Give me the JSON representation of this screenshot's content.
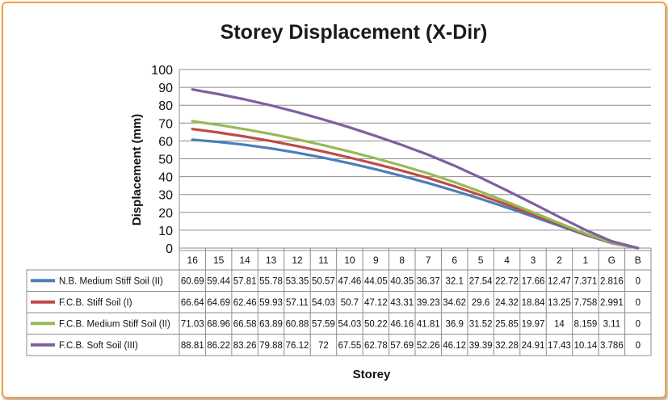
{
  "chart_data": {
    "type": "line",
    "title": "Storey Displacement (X-Dir)",
    "xlabel": "Storey",
    "ylabel": "Displacement (mm)",
    "ylim": [
      0,
      100
    ],
    "yticks": [
      0,
      10,
      20,
      30,
      40,
      50,
      60,
      70,
      80,
      90,
      100
    ],
    "grid": true,
    "legend": "data-table-left",
    "categories": [
      "16",
      "15",
      "14",
      "13",
      "12",
      "11",
      "10",
      "9",
      "8",
      "7",
      "6",
      "5",
      "4",
      "3",
      "2",
      "1",
      "G",
      "B"
    ],
    "series": [
      {
        "name": "N.B. Medium Stiff Soil (II)",
        "color": "#4a7ebb",
        "values": [
          60.69,
          59.44,
          57.81,
          55.78,
          53.35,
          50.57,
          47.46,
          44.05,
          40.35,
          36.37,
          32.1,
          27.54,
          22.72,
          17.66,
          12.47,
          7.371,
          2.816,
          0
        ]
      },
      {
        "name": "F.C.B. Stiff Soil (I)",
        "color": "#be4b48",
        "values": [
          66.64,
          64.69,
          62.46,
          59.93,
          57.11,
          54.03,
          50.7,
          47.12,
          43.31,
          39.23,
          34.62,
          29.6,
          24.32,
          18.84,
          13.25,
          7.758,
          2.991,
          0
        ]
      },
      {
        "name": "F.C.B. Medium Stiff Soil (II)",
        "color": "#98b954",
        "values": [
          71.03,
          68.96,
          66.58,
          63.89,
          60.88,
          57.59,
          54.03,
          50.22,
          46.16,
          41.81,
          36.9,
          31.52,
          25.85,
          19.97,
          14,
          8.159,
          3.11,
          0
        ]
      },
      {
        "name": "F.C.B. Soft Soil (III)",
        "color": "#7d60a0",
        "values": [
          88.81,
          86.22,
          83.26,
          79.88,
          76.12,
          72,
          67.55,
          62.78,
          57.69,
          52.26,
          46.12,
          39.39,
          32.28,
          24.91,
          17.43,
          10.14,
          3.786,
          0
        ]
      }
    ]
  }
}
